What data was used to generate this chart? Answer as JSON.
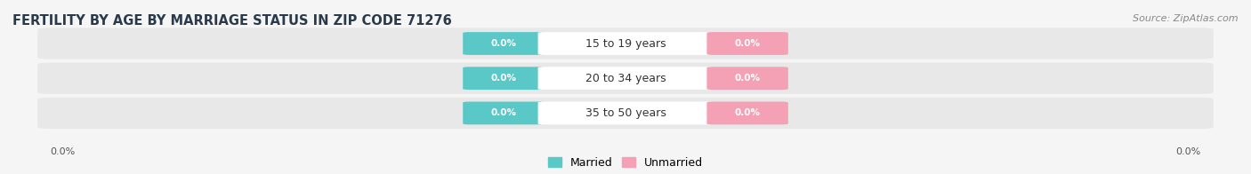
{
  "title": "FERTILITY BY AGE BY MARRIAGE STATUS IN ZIP CODE 71276",
  "source_text": "Source: ZipAtlas.com",
  "age_groups": [
    "15 to 19 years",
    "20 to 34 years",
    "35 to 50 years"
  ],
  "married_values": [
    0.0,
    0.0,
    0.0
  ],
  "unmarried_values": [
    0.0,
    0.0,
    0.0
  ],
  "married_color": "#5BC8C8",
  "unmarried_color": "#F4A0B5",
  "bar_bg_color": "#E8E8E8",
  "background_color": "#F5F5F5",
  "legend_married": "Married",
  "legend_unmarried": "Unmarried",
  "title_fontsize": 10.5,
  "source_fontsize": 8,
  "badge_label_fontsize": 7.5,
  "age_label_fontsize": 9,
  "tick_fontsize": 8
}
